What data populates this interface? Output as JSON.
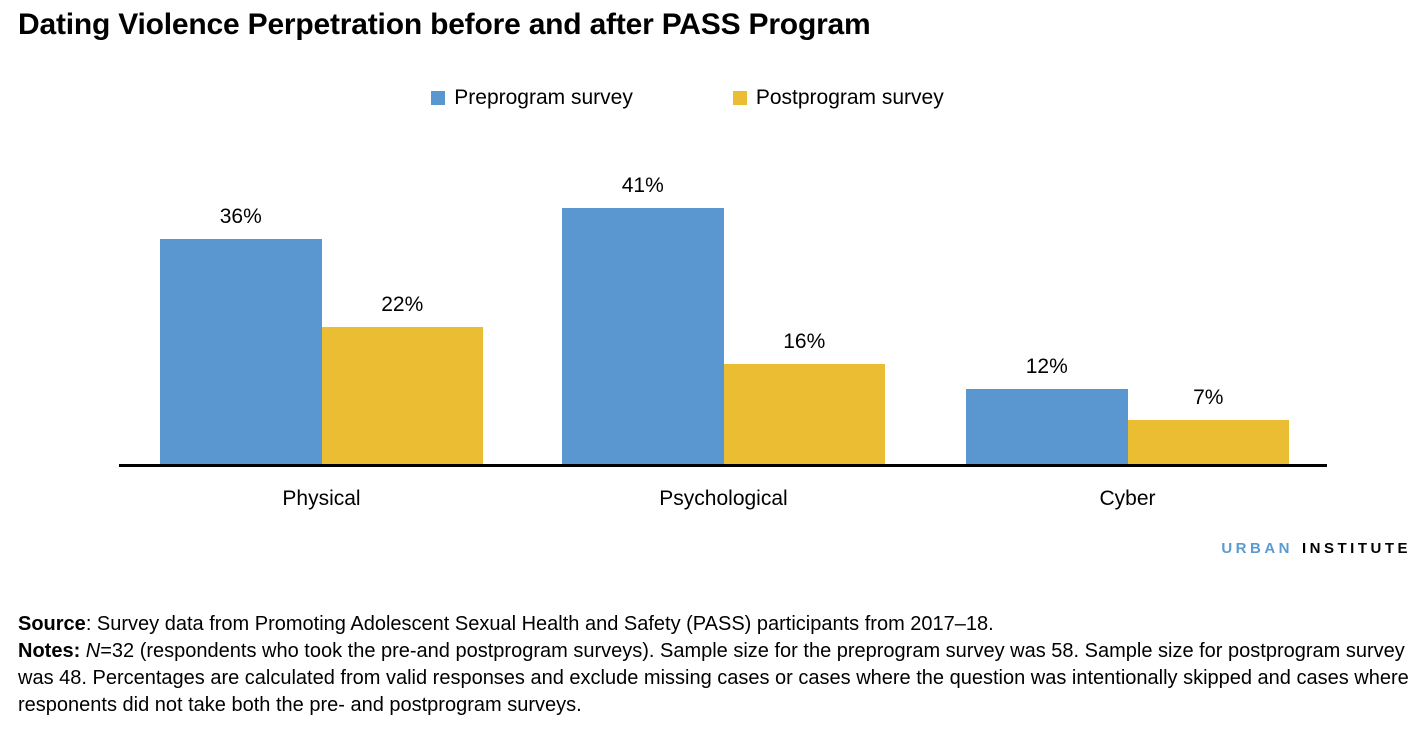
{
  "title": "Dating Violence Perpetration before and after PASS Program",
  "chart_data": {
    "type": "bar",
    "title": "Dating Violence Perpetration before and after PASS Program",
    "categories": [
      "Physical",
      "Psychological",
      "Cyber"
    ],
    "series": [
      {
        "name": "Preprogram survey",
        "color": "#5A96D0",
        "values": [
          36,
          41,
          12
        ]
      },
      {
        "name": "Postprogram survey",
        "color": "#EABD33",
        "values": [
          22,
          16,
          7
        ]
      }
    ],
    "value_labels": [
      [
        "36%",
        "41%",
        "12%"
      ],
      [
        "22%",
        "16%",
        "7%"
      ]
    ],
    "ylim": [
      0,
      45
    ],
    "y_axis_visible": false,
    "grid": false,
    "legend_position": "top",
    "axis_line_color": "#000000"
  },
  "logo": {
    "word1": "URBAN",
    "word2": "INSTITUTE",
    "word1_color": "#5B9BD0"
  },
  "footer": {
    "source_label": "Source",
    "source_text": ": Survey data from Promoting Adolescent Sexual Health and Safety (PASS) participants from 2017–18.",
    "notes_label": "Notes:",
    "notes_n": "N",
    "notes_text": "=32 (respondents who took the pre-and postprogram surveys). Sample size for the preprogram survey was 58. Sample size for postprogram survey was 48. Percentages are calculated from valid responses and exclude missing cases or cases where the question was intentionally skipped and cases where responents did not take both the pre- and postprogram surveys."
  }
}
